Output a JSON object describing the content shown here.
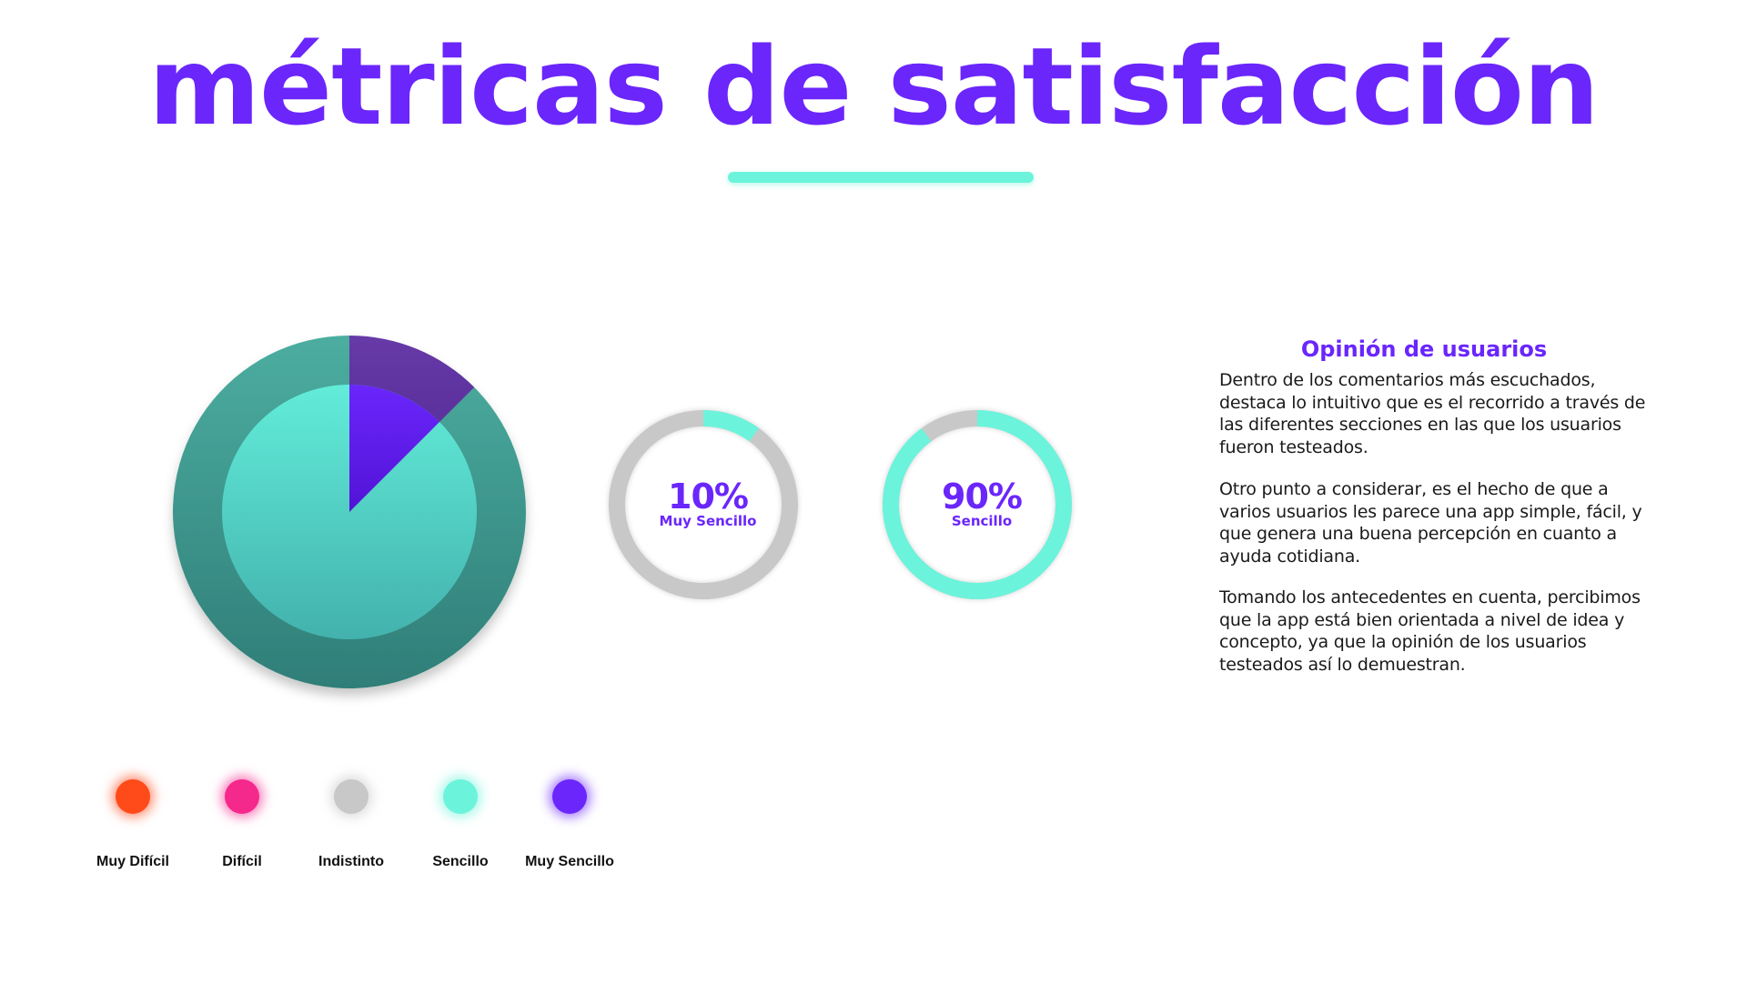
{
  "page": {
    "title": "métricas de satisfacción"
  },
  "chart_data": [
    {
      "type": "pie",
      "labels": [
        "Muy Sencillo",
        "Sencillo"
      ],
      "values": [
        10,
        90
      ],
      "colors": [
        "#6a26fb",
        "#5fe3d3"
      ],
      "outer_ring_colors": [
        "#5b2e9e",
        "#3a9a90"
      ]
    },
    {
      "type": "gauge",
      "value": 10,
      "display": "10%",
      "label": "Muy Sencillo",
      "fill_color": "#6cf3db",
      "track_color": "#c8c8c8"
    },
    {
      "type": "gauge",
      "value": 90,
      "display": "90%",
      "label": "Sencillo",
      "fill_color": "#6cf3db",
      "track_color": "#c8c8c8"
    }
  ],
  "legend": {
    "items": [
      {
        "label": "Muy Difícil",
        "color": "#ff4a1a"
      },
      {
        "label": "Difícil",
        "color": "#f5288c"
      },
      {
        "label": "Indistinto",
        "color": "#c8c8c8"
      },
      {
        "label": "Sencillo",
        "color": "#6cf3db"
      },
      {
        "label": "Muy Sencillo",
        "color": "#6a26fb"
      }
    ]
  },
  "opinion": {
    "title": "Opinión de usuarios",
    "paragraphs": [
      "Dentro de los comentarios más escuchados, destaca lo intuitivo que es el recorrido a través de las diferentes secciones en las que los usuarios fueron testeados.",
      "Otro punto a considerar, es el hecho de que a varios usuarios les parece una app simple, fácil, y que genera una buena percepción en cuanto a ayuda cotidiana.",
      "Tomando los antecedentes en cuenta, percibimos que la app está bien orientada a nivel de idea y concepto, ya que la opinión de los usuarios testeados así lo demuestran."
    ]
  }
}
